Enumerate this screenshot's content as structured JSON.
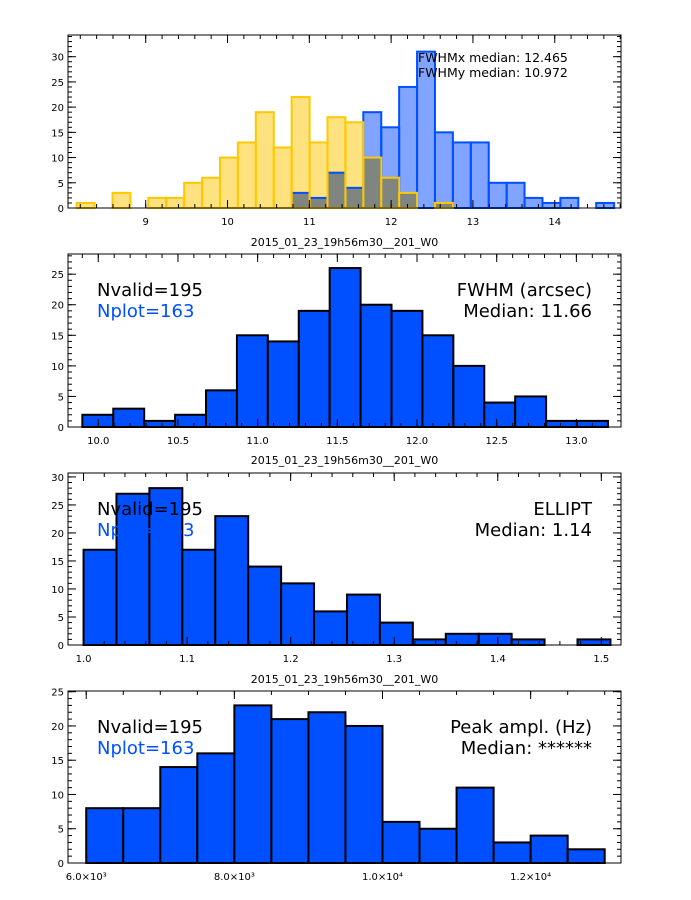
{
  "colors": {
    "bar_fill": "#0050ff",
    "bar_edge": "#000000",
    "fwhmx_fill": "#80a4ff",
    "fwhmx_edge": "#0050ff",
    "fwhmy_fill": "#ffe280",
    "fwhmy_edge": "#ffc800",
    "overlap_fill": "#80857f",
    "nplot_text": "#0050ff"
  },
  "chart_data": [
    {
      "type": "bar",
      "title": "",
      "annotations": [
        "FWHMx median: 12.465",
        "FWHMy median: 10.972"
      ],
      "xlim": [
        8.05,
        14.81
      ],
      "ylim": [
        0,
        34.3
      ],
      "xticks": [
        9,
        10,
        11,
        12,
        13,
        14
      ],
      "xtick_labels": [
        "9",
        "10",
        "11",
        "12",
        "13",
        "14"
      ],
      "yticks": [
        0,
        5,
        10,
        15,
        20,
        25,
        30
      ],
      "ytick_labels": [
        "0",
        "5",
        "10",
        "15",
        "20",
        "25",
        "30"
      ],
      "bin_width": 0.219,
      "series": [
        {
          "key": "fwhmy",
          "bin_start": 8.156,
          "values": [
            1,
            0,
            3,
            0,
            2,
            2,
            5,
            6,
            10,
            13,
            19,
            12,
            22,
            13,
            18,
            17,
            10,
            6,
            3,
            0,
            1
          ]
        },
        {
          "key": "fwhmx",
          "bin_start": 10.784,
          "values": [
            3,
            2,
            7,
            4,
            19,
            16,
            24,
            31,
            15,
            13,
            13,
            5,
            5,
            2,
            1,
            2,
            0,
            1
          ]
        }
      ]
    },
    {
      "type": "bar",
      "title": "2015_01_23_19h56m30__201_W0",
      "annotations_left": [
        "Nvalid=195",
        "Nplot=163"
      ],
      "annotations_right": [
        "FWHM (arcsec)",
        "Median: 11.66"
      ],
      "xlim": [
        9.81,
        13.28
      ],
      "ylim": [
        0,
        28.3
      ],
      "xticks": [
        10.0,
        10.5,
        11.0,
        11.5,
        12.0,
        12.5,
        13.0
      ],
      "xtick_labels": [
        "10.0",
        "10.5",
        "11.0",
        "11.5",
        "12.0",
        "12.5",
        "13.0"
      ],
      "yticks": [
        0,
        5,
        10,
        15,
        20,
        25
      ],
      "ytick_labels": [
        "0",
        "5",
        "10",
        "15",
        "20",
        "25"
      ],
      "bin_start": 9.9,
      "bin_width": 0.194,
      "values": [
        2,
        3,
        1,
        2,
        6,
        15,
        14,
        19,
        26,
        20,
        19,
        15,
        10,
        4,
        5,
        1,
        1
      ]
    },
    {
      "type": "bar",
      "title": "2015_01_23_19h56m30__201_W0",
      "annotations_left": [
        "Nvalid=195",
        "Nplot=163"
      ],
      "annotations_right": [
        "ELLIPT",
        "Median: 1.14"
      ],
      "xlim": [
        0.985,
        1.519
      ],
      "ylim": [
        0,
        30.7
      ],
      "xticks": [
        1.0,
        1.1,
        1.2,
        1.3,
        1.4,
        1.5
      ],
      "xtick_labels": [
        "1.0",
        "1.1",
        "1.2",
        "1.3",
        "1.4",
        "1.5"
      ],
      "yticks": [
        0,
        5,
        10,
        15,
        20,
        25,
        30
      ],
      "ytick_labels": [
        "0",
        "5",
        "10",
        "15",
        "20",
        "25",
        "30"
      ],
      "bin_start": 1.0,
      "bin_width": 0.0318,
      "values": [
        17,
        27,
        28,
        17,
        23,
        14,
        11,
        6,
        9,
        4,
        1,
        2,
        2,
        1,
        0,
        1
      ]
    },
    {
      "type": "bar",
      "title": "2015_01_23_19h56m30__201_W0",
      "annotations_left": [
        "Nvalid=195",
        "Nplot=163"
      ],
      "annotations_right": [
        "Peak ampl. (Hz)",
        "Median: ******"
      ],
      "xlim": [
        5754,
        13220
      ],
      "ylim": [
        0,
        25.1
      ],
      "xticks": [
        6000,
        8000,
        10000,
        12000
      ],
      "xtick_labels": [
        "6.0×10³",
        "8.0×10³",
        "1.0×10⁴",
        "1.2×10⁴"
      ],
      "yticks": [
        0,
        5,
        10,
        15,
        20,
        25
      ],
      "ytick_labels": [
        "0",
        "5",
        "10",
        "15",
        "20",
        "25"
      ],
      "bin_start": 6000,
      "bin_width": 500,
      "values": [
        8,
        8,
        14,
        16,
        23,
        21,
        22,
        20,
        6,
        5,
        11,
        3,
        4,
        2
      ]
    }
  ]
}
